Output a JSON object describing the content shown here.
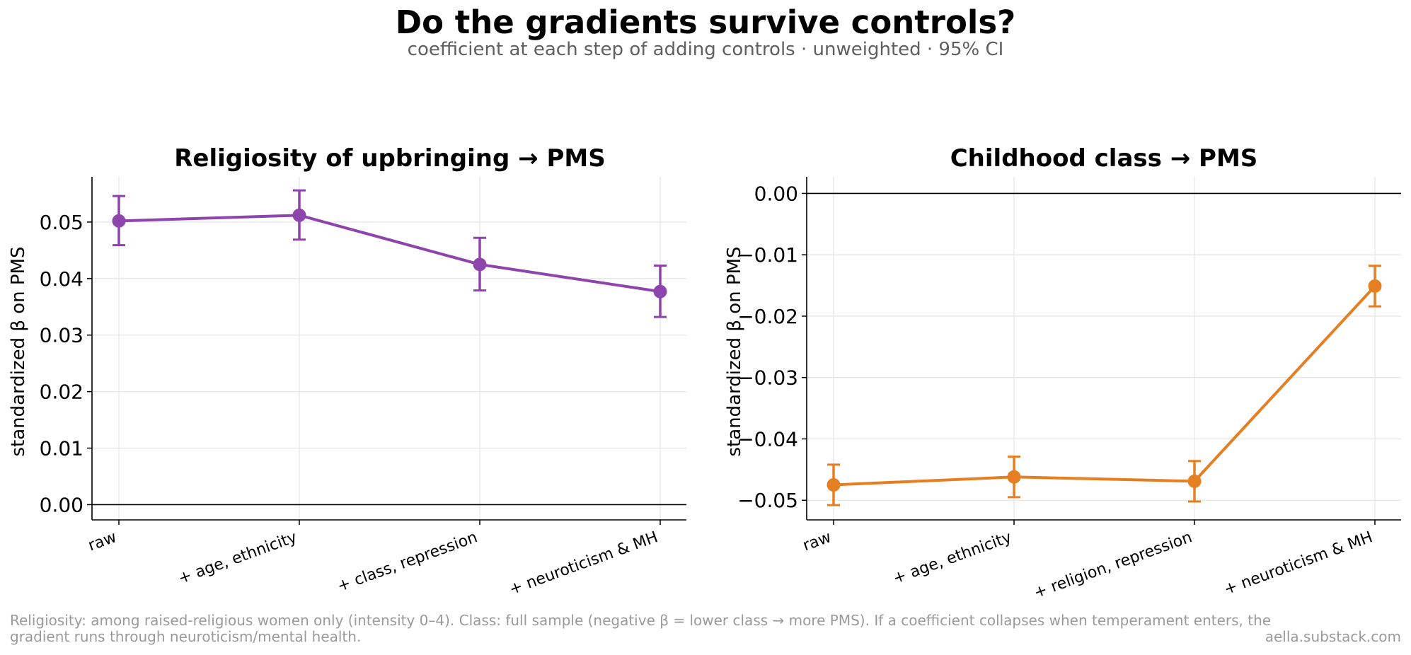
{
  "title": "Do the gradients survive controls?",
  "subtitle": "coefficient at each step of adding controls · unweighted · 95% CI",
  "footer": {
    "note_line1": "Religiosity: among raised-religious women only (intensity 0–4). Class: full sample (negative β = lower class → more PMS). If a coefficient collapses when temperament enters, the",
    "note_line2": "gradient runs through neuroticism/mental health.",
    "source": "aella.substack.com"
  },
  "chart_data": [
    {
      "type": "line",
      "title": "Religiosity of upbringing → PMS",
      "ylabel": "standardized β on PMS",
      "xlabel": "",
      "categories": [
        "raw",
        "+ age, ethnicity",
        "+ class, repression",
        "+ neuroticism & MH"
      ],
      "series": [
        {
          "values": [
            0.0502,
            0.0512,
            0.0425,
            0.0377
          ],
          "ci_low": [
            0.0459,
            0.0469,
            0.0379,
            0.0332
          ],
          "ci_high": [
            0.0546,
            0.0556,
            0.0472,
            0.0423
          ],
          "color": "#8e44ad"
        }
      ],
      "yticks": [
        0.0,
        0.01,
        0.02,
        0.03,
        0.04,
        0.05
      ],
      "ytick_labels": [
        "0.00",
        "0.01",
        "0.02",
        "0.03",
        "0.04",
        "0.05"
      ],
      "ylim": [
        -0.0027,
        0.058
      ],
      "reference_line": 0,
      "grid": true,
      "legend": "none"
    },
    {
      "type": "line",
      "title": "Childhood class → PMS",
      "ylabel": "standardized β on PMS",
      "xlabel": "",
      "categories": [
        "raw",
        "+ age, ethnicity",
        "+ religion, repression",
        "+ neuroticism & MH"
      ],
      "series": [
        {
          "values": [
            -0.0475,
            -0.0462,
            -0.0469,
            -0.0151
          ],
          "ci_low": [
            -0.0508,
            -0.0495,
            -0.0502,
            -0.0184
          ],
          "ci_high": [
            -0.0442,
            -0.0429,
            -0.0436,
            -0.0118
          ],
          "color": "#e67e22"
        }
      ],
      "yticks": [
        0.0,
        -0.01,
        -0.02,
        -0.03,
        -0.04,
        -0.05
      ],
      "ytick_labels": [
        "0.00",
        "−0.01",
        "−0.02",
        "−0.03",
        "−0.04",
        "−0.05"
      ],
      "ylim": [
        -0.0532,
        0.0027
      ],
      "reference_line": 0,
      "grid": true,
      "legend": "none"
    }
  ]
}
